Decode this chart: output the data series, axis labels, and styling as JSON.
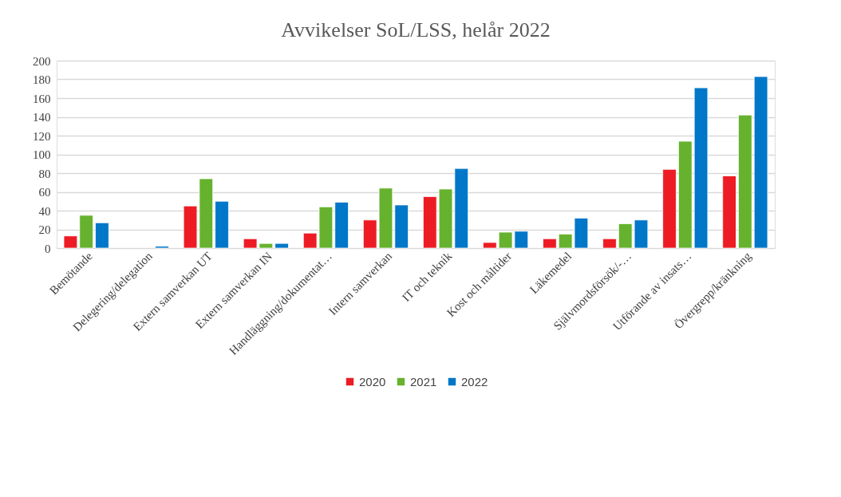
{
  "chart_data": {
    "type": "bar",
    "title": "Avvikelser SoL/LSS, helår 2022",
    "categories": [
      "Bemötande",
      "Delegering/delegation",
      "Extern samverkan UT",
      "Extern samverkan IN",
      "Handläggning/dokumentat…",
      "Intern samverkan",
      "IT och teknik",
      "Kost och måltider",
      "Läkemedel",
      "Självmordsförsök/-…",
      "Utförande av insats…",
      "Övergrepp/kränkning"
    ],
    "series": [
      {
        "name": "2020",
        "color": "#ed1c24",
        "values": [
          13,
          null,
          45,
          10,
          16,
          30,
          55,
          6,
          10,
          10,
          84,
          77
        ]
      },
      {
        "name": "2021",
        "color": "#66b22e",
        "values": [
          35,
          null,
          74,
          5,
          44,
          64,
          63,
          17,
          15,
          26,
          114,
          142
        ]
      },
      {
        "name": "2022",
        "color": "#0077c8",
        "values": [
          27,
          2,
          50,
          5,
          49,
          46,
          85,
          18,
          32,
          30,
          171,
          183
        ]
      }
    ],
    "ylim": [
      0,
      200
    ],
    "yticks": [
      0,
      20,
      40,
      60,
      80,
      100,
      120,
      140,
      160,
      180,
      200
    ],
    "grid": "y",
    "legend": "bottom"
  }
}
